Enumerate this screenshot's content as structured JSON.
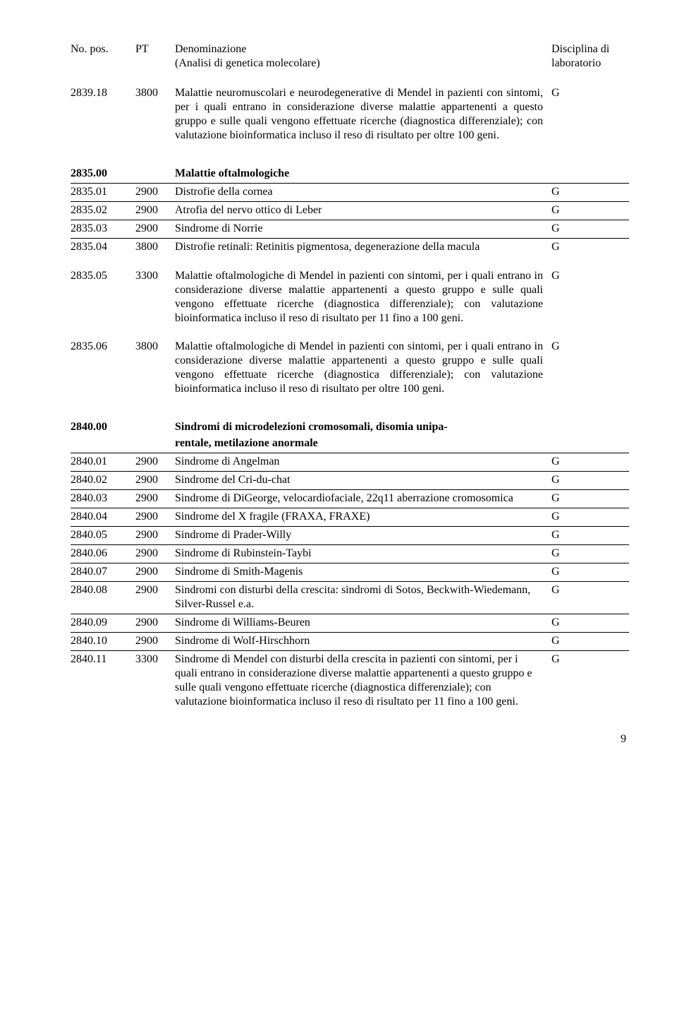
{
  "header": {
    "no_pos": "No. pos.",
    "pt": "PT",
    "denom": "Denominazione",
    "denom_sub": "(Analisi di genetica molecolare)",
    "disc": "Disciplina di",
    "disc_sub": "laboratorio"
  },
  "block1": {
    "no": "2839.18",
    "pt": "3800",
    "text": "Malattie neuromuscolari e neurodegenerative di Mendel in pazienti con sintomi, per i quali entrano in considerazione diverse malattie appartenenti a questo gruppo e sulle quali vengono effettuate ricerche (diagnostica differenziale); con valutazione bioinformatica incluso il reso di risultato per oltre 100 geni.",
    "disc": "G"
  },
  "section2835": {
    "no": "2835.00",
    "title": "Malattie oftalmologiche",
    "rows": [
      {
        "no": "2835.01",
        "pt": "2900",
        "text": "Distrofie della cornea",
        "disc": "G"
      },
      {
        "no": "2835.02",
        "pt": "2900",
        "text": "Atrofia del nervo ottico di Leber",
        "disc": "G"
      },
      {
        "no": "2835.03",
        "pt": "2900",
        "text": "Sindrome di Norrie",
        "disc": "G"
      },
      {
        "no": "2835.04",
        "pt": "3800",
        "text": "Distrofie retinali: Retinitis pigmentosa, degenerazione della macula",
        "disc": "G"
      }
    ]
  },
  "block2835_05": {
    "no": "2835.05",
    "pt": "3300",
    "text": "Malattie oftalmologiche di Mendel in pazienti con sintomi, per i quali entrano in considerazione diverse malattie appartenenti a questo gruppo e sulle quali vengono effettuate ricerche (diagnostica differenziale); con valutazione bioinformatica incluso il reso di risultato per 11 fino a 100 geni.",
    "disc": "G"
  },
  "block2835_06": {
    "no": "2835.06",
    "pt": "3800",
    "text": "Malattie oftalmologiche di Mendel in pazienti con sintomi, per i quali entrano in considerazione diverse malattie appartenenti a questo gruppo e sulle quali vengono effettuate ricerche (diagnostica differenziale); con valutazione bioinformatica incluso il reso di risultato per oltre 100 geni.",
    "disc": "G"
  },
  "section2840": {
    "no": "2840.00",
    "title_a": "Sindromi di microdelezioni cromosomali, disomia unipa-",
    "title_b": "rentale, metilazione anormale",
    "rows": [
      {
        "no": "2840.01",
        "pt": "2900",
        "text": "Sindrome di Angelman",
        "disc": "G"
      },
      {
        "no": "2840.02",
        "pt": "2900",
        "text": "Sindrome del Cri-du-chat",
        "disc": "G"
      },
      {
        "no": "2840.03",
        "pt": "2900",
        "text": "Sindrome di DiGeorge, velocardiofaciale, 22q11 aberrazione cromosomica",
        "disc": "G"
      },
      {
        "no": "2840.04",
        "pt": "2900",
        "text": "Sindrome del X fragile (FRAXA, FRAXE)",
        "disc": "G"
      },
      {
        "no": "2840.05",
        "pt": "2900",
        "text": "Sindrome di Prader-Willy",
        "disc": "G"
      },
      {
        "no": "2840.06",
        "pt": "2900",
        "text": "Sindrome di Rubinstein-Taybi",
        "disc": "G"
      },
      {
        "no": "2840.07",
        "pt": "2900",
        "text": "Sindrome di Smith-Magenis",
        "disc": "G"
      },
      {
        "no": "2840.08",
        "pt": "2900",
        "text": "Sindromi con disturbi della crescita: sindromi di Sotos, Beckwith-Wiedemann, Silver-Russel e.a.",
        "disc": "G"
      },
      {
        "no": "2840.09",
        "pt": "2900",
        "text": "Sindrome di Williams-Beuren",
        "disc": "G"
      },
      {
        "no": "2840.10",
        "pt": "2900",
        "text": "Sindrome di Wolf-Hirschhorn",
        "disc": "G"
      },
      {
        "no": "2840.11",
        "pt": "3300",
        "text": "Sindrome di Mendel con disturbi della crescita in pazienti con sintomi, per i quali entrano in considerazione diverse malattie appartenenti a questo gruppo e sulle quali vengono effettuate ricerche (diagnostica differenziale); con valutazione bioinformatica incluso il reso di risultato per 11 fino a 100 geni.",
        "disc": "G"
      }
    ]
  },
  "page": "9"
}
